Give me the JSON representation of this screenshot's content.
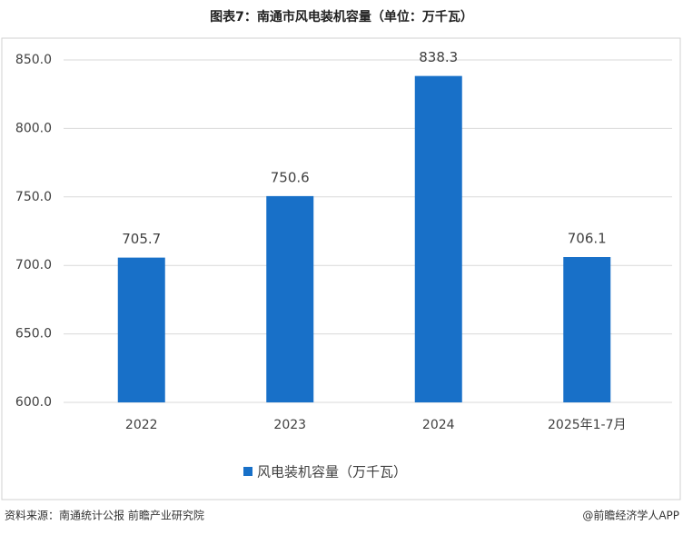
{
  "chart_data": {
    "type": "bar",
    "title": "图表7：南通市风电装机容量（单位：万千瓦）",
    "categories": [
      "2022",
      "2023",
      "2024",
      "2025年1-7月"
    ],
    "series": [
      {
        "name": "风电装机容量（万千瓦）",
        "color": "#1870c8",
        "values": [
          705.7,
          750.6,
          838.3,
          706.1
        ]
      }
    ],
    "ylim": [
      600,
      850
    ],
    "yticks": [
      {
        "value": 600,
        "label": "600.0"
      },
      {
        "value": 650,
        "label": "650.0"
      },
      {
        "value": 700,
        "label": "700.0"
      },
      {
        "value": 750,
        "label": "750.0"
      },
      {
        "value": 800,
        "label": "800.0"
      },
      {
        "value": 850,
        "label": "850.0"
      }
    ],
    "grid": true,
    "source": "资料来源：南通统计公报 前瞻产业研究院",
    "credit": "@前瞻经济学人APP"
  }
}
